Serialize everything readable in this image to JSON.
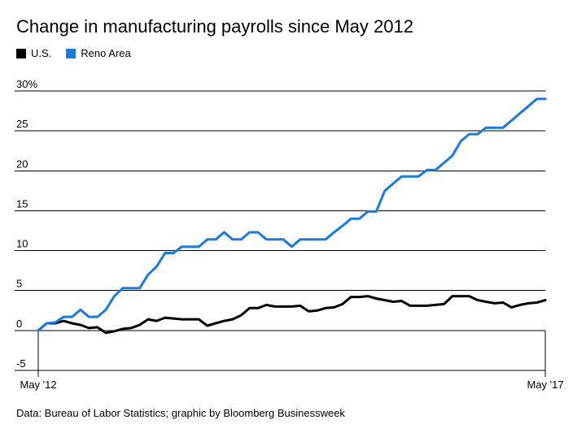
{
  "chart_data": {
    "type": "line",
    "title": "Change in manufacturing payrolls since May 2012",
    "xlabel": "",
    "ylabel": "",
    "x_tick_labels": [
      "May '12",
      "May '17"
    ],
    "y_ticks": [
      -5,
      0,
      5,
      10,
      15,
      20,
      25,
      30
    ],
    "y_tick_labels": [
      "-5",
      "0",
      "5",
      "10",
      "15",
      "20",
      "25",
      "30%"
    ],
    "ylim": [
      -5,
      30
    ],
    "x_range_months": [
      0,
      60
    ],
    "grid": true,
    "legend_position": "top-left",
    "series": [
      {
        "name": "U.S.",
        "color": "#000000",
        "values": [
          0,
          0.9,
          0.9,
          1.2,
          0.9,
          0.7,
          0.3,
          0.4,
          -0.3,
          -0.1,
          0.2,
          0.3,
          0.7,
          1.4,
          1.2,
          1.6,
          1.5,
          1.4,
          1.4,
          1.4,
          0.6,
          0.9,
          1.2,
          1.4,
          1.9,
          2.8,
          2.8,
          3.2,
          3.0,
          3.0,
          3.0,
          3.1,
          2.4,
          2.5,
          2.8,
          2.9,
          3.3,
          4.2,
          4.2,
          4.3,
          4.0,
          3.8,
          3.6,
          3.7,
          3.1,
          3.1,
          3.1,
          3.2,
          3.3,
          4.3,
          4.3,
          4.3,
          3.8,
          3.6,
          3.4,
          3.5,
          2.9,
          3.2,
          3.4,
          3.5,
          3.8
        ]
      },
      {
        "name": "Reno Area",
        "color": "#1a7ae0",
        "values": [
          0,
          0.9,
          1.0,
          1.7,
          1.7,
          2.6,
          1.7,
          1.7,
          2.6,
          4.3,
          5.3,
          5.3,
          5.3,
          7.0,
          8.0,
          9.7,
          9.7,
          10.5,
          10.5,
          10.5,
          11.4,
          11.4,
          12.3,
          11.4,
          11.4,
          12.3,
          12.3,
          11.4,
          11.4,
          11.4,
          10.5,
          11.4,
          11.4,
          11.4,
          11.4,
          12.3,
          13.1,
          14.0,
          14.0,
          14.9,
          14.9,
          17.5,
          18.4,
          19.3,
          19.3,
          19.3,
          20.1,
          20.1,
          21.0,
          21.9,
          23.7,
          24.6,
          24.6,
          25.4,
          25.4,
          25.4,
          26.3,
          27.2,
          28.1,
          29.0,
          29.0
        ]
      }
    ]
  },
  "source_text": "Data: Bureau of Labor Statistics; graphic by Bloomberg Businessweek"
}
